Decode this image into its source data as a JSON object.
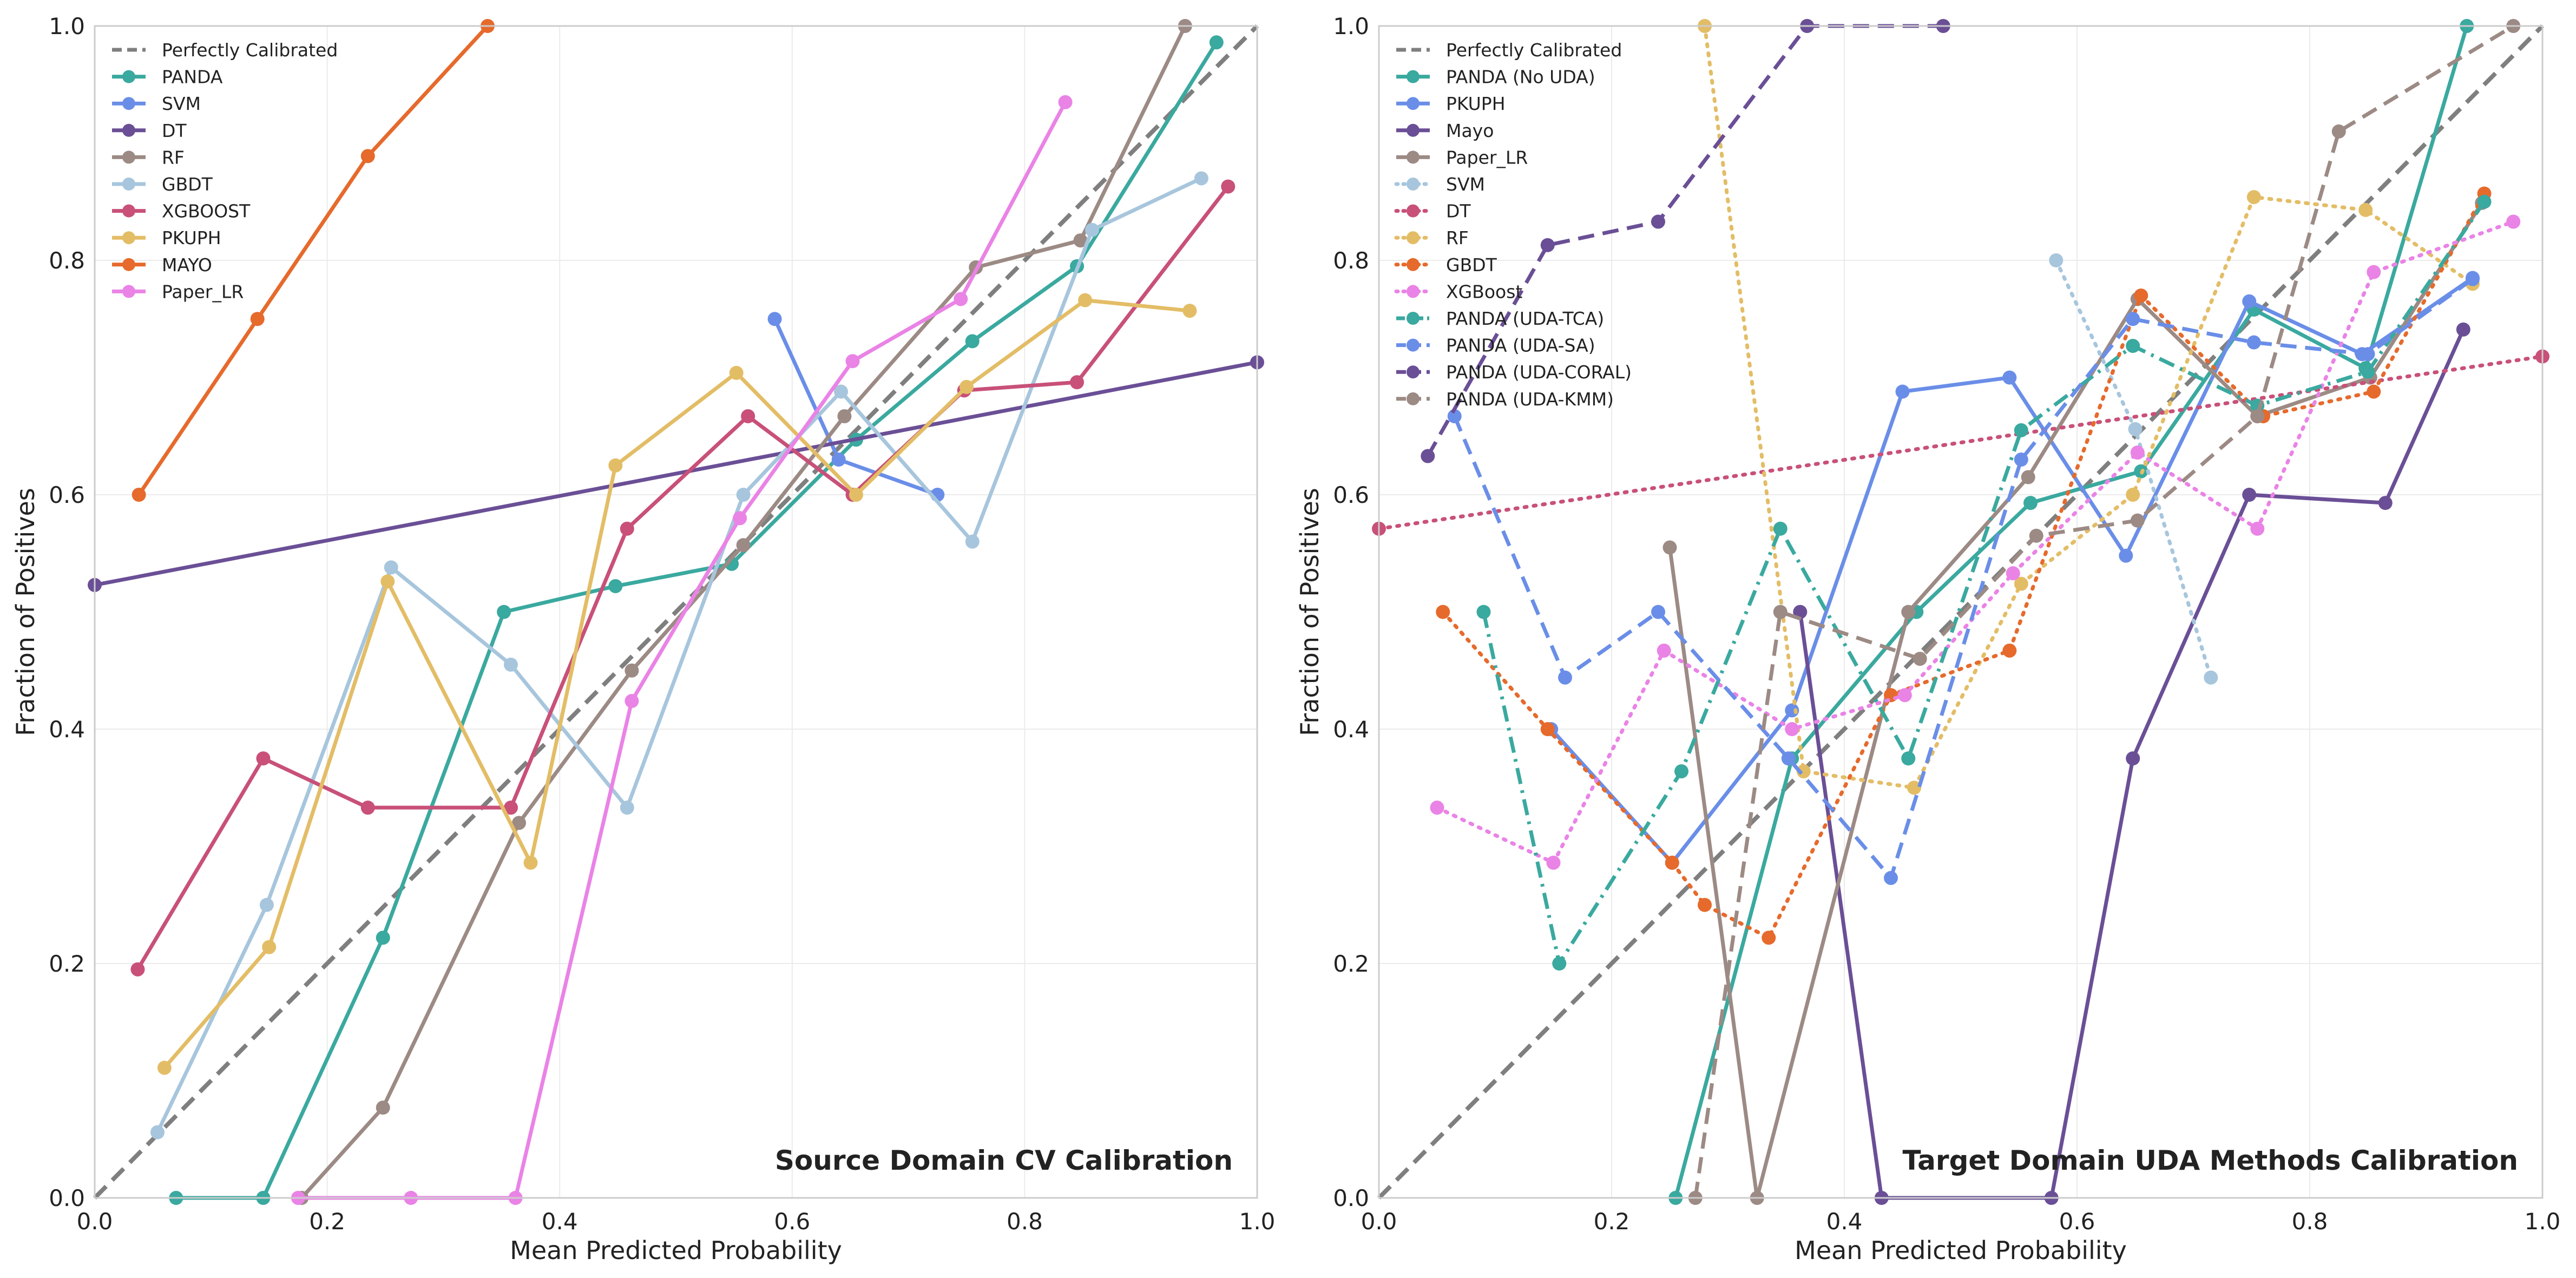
{
  "colors": {
    "diagonal": "#7f7f7f",
    "PANDA": "#3aa99f",
    "SVM": "#6a8ee8",
    "DT": "#6a4f96",
    "RF": "#9c8a84",
    "GBDT": "#a7c6dd",
    "XGBOOST": "#c85079",
    "PKUPH": "#e3bd66",
    "MAYO": "#e66a2c",
    "Paper_LR": "#ea83e6",
    "grid": "#ebebeb",
    "axes": "#cccccc",
    "text": "#222222"
  },
  "chart_data": [
    {
      "type": "line",
      "title": "Source Domain CV Calibration",
      "xlabel": "Mean Predicted Probability",
      "ylabel": "Fraction of Positives",
      "xlim": [
        0,
        1
      ],
      "ylim": [
        0,
        1
      ],
      "xticks": [
        "0.0",
        "0.2",
        "0.4",
        "0.6",
        "0.8",
        "1.0"
      ],
      "yticks": [
        "0.0",
        "0.2",
        "0.4",
        "0.6",
        "0.8",
        "1.0"
      ],
      "grid": true,
      "legend": "top-left",
      "title_position": "bottom-right",
      "series": [
        {
          "name": "Perfectly Calibrated",
          "color": "#7f7f7f",
          "dash": "dashed",
          "markers": false,
          "points": [
            [
              0,
              0
            ],
            [
              1,
              1
            ]
          ]
        },
        {
          "name": "PANDA",
          "color": "#3aa99f",
          "dash": "solid",
          "markers": true,
          "points": [
            [
              0.07,
              0.0
            ],
            [
              0.145,
              0.0
            ],
            [
              0.248,
              0.222
            ],
            [
              0.352,
              0.5
            ],
            [
              0.448,
              0.522
            ],
            [
              0.548,
              0.541
            ],
            [
              0.655,
              0.647
            ],
            [
              0.755,
              0.731
            ],
            [
              0.845,
              0.795
            ],
            [
              0.965,
              0.986
            ]
          ]
        },
        {
          "name": "SVM",
          "color": "#6a8ee8",
          "dash": "solid",
          "markers": true,
          "points": [
            [
              0.585,
              0.75
            ],
            [
              0.64,
              0.63
            ],
            [
              0.725,
              0.6
            ]
          ]
        },
        {
          "name": "DT",
          "color": "#6a4f96",
          "dash": "solid",
          "markers": true,
          "points": [
            [
              0.0,
              0.523
            ],
            [
              1.0,
              0.713
            ]
          ]
        },
        {
          "name": "RF",
          "color": "#9c8a84",
          "dash": "solid",
          "markers": true,
          "points": [
            [
              0.178,
              0.0
            ],
            [
              0.248,
              0.077
            ],
            [
              0.365,
              0.32
            ],
            [
              0.462,
              0.45
            ],
            [
              0.558,
              0.557
            ],
            [
              0.645,
              0.667
            ],
            [
              0.758,
              0.794
            ],
            [
              0.848,
              0.817
            ],
            [
              0.938,
              1.0
            ]
          ]
        },
        {
          "name": "GBDT",
          "color": "#a7c6dd",
          "dash": "solid",
          "markers": true,
          "points": [
            [
              0.054,
              0.056
            ],
            [
              0.148,
              0.25
            ],
            [
              0.255,
              0.538
            ],
            [
              0.358,
              0.455
            ],
            [
              0.458,
              0.333
            ],
            [
              0.558,
              0.6
            ],
            [
              0.642,
              0.688
            ],
            [
              0.755,
              0.56
            ],
            [
              0.858,
              0.826
            ],
            [
              0.952,
              0.87
            ]
          ]
        },
        {
          "name": "XGBOOST",
          "color": "#c85079",
          "dash": "solid",
          "markers": true,
          "points": [
            [
              0.037,
              0.195
            ],
            [
              0.145,
              0.375
            ],
            [
              0.235,
              0.333
            ],
            [
              0.358,
              0.333
            ],
            [
              0.458,
              0.571
            ],
            [
              0.562,
              0.667
            ],
            [
              0.652,
              0.6
            ],
            [
              0.748,
              0.689
            ],
            [
              0.845,
              0.696
            ],
            [
              0.975,
              0.863
            ]
          ]
        },
        {
          "name": "PKUPH",
          "color": "#e3bd66",
          "dash": "solid",
          "markers": true,
          "points": [
            [
              0.06,
              0.111
            ],
            [
              0.15,
              0.214
            ],
            [
              0.252,
              0.526
            ],
            [
              0.375,
              0.286
            ],
            [
              0.448,
              0.625
            ],
            [
              0.552,
              0.704
            ],
            [
              0.655,
              0.6
            ],
            [
              0.75,
              0.692
            ],
            [
              0.852,
              0.766
            ],
            [
              0.942,
              0.757
            ]
          ]
        },
        {
          "name": "MAYO",
          "color": "#e66a2c",
          "dash": "solid",
          "markers": true,
          "points": [
            [
              0.038,
              0.6
            ],
            [
              0.14,
              0.75
            ],
            [
              0.235,
              0.889
            ],
            [
              0.338,
              1.0
            ]
          ]
        },
        {
          "name": "Paper_LR",
          "color": "#ea83e6",
          "dash": "solid",
          "markers": true,
          "points": [
            [
              0.175,
              0.0
            ],
            [
              0.272,
              0.0
            ],
            [
              0.362,
              0.0
            ],
            [
              0.462,
              0.424
            ],
            [
              0.555,
              0.58
            ],
            [
              0.652,
              0.714
            ],
            [
              0.745,
              0.767
            ],
            [
              0.835,
              0.935
            ]
          ]
        }
      ]
    },
    {
      "type": "line",
      "title": "Target Domain UDA Methods Calibration",
      "xlabel": "Mean Predicted Probability",
      "ylabel": "Fraction of Positives",
      "xlim": [
        0,
        1
      ],
      "ylim": [
        0,
        1
      ],
      "xticks": [
        "0.0",
        "0.2",
        "0.4",
        "0.6",
        "0.8",
        "1.0"
      ],
      "yticks": [
        "0.0",
        "0.2",
        "0.4",
        "0.6",
        "0.8",
        "1.0"
      ],
      "grid": true,
      "legend": "top-left",
      "title_position": "bottom-right",
      "series": [
        {
          "name": "Perfectly Calibrated",
          "color": "#7f7f7f",
          "dash": "dashed",
          "markers": false,
          "points": [
            [
              0,
              0
            ],
            [
              1,
              1
            ]
          ]
        },
        {
          "name": "PANDA (No UDA)",
          "color": "#3aa99f",
          "dash": "solid",
          "markers": true,
          "points": [
            [
              0.255,
              0.0
            ],
            [
              0.355,
              0.375
            ],
            [
              0.462,
              0.5
            ],
            [
              0.56,
              0.593
            ],
            [
              0.655,
              0.62
            ],
            [
              0.752,
              0.758
            ],
            [
              0.848,
              0.708
            ],
            [
              0.935,
              1.0
            ]
          ]
        },
        {
          "name": "PKUPH",
          "color": "#6a8ee8",
          "dash": "solid",
          "markers": true,
          "points": [
            [
              0.148,
              0.4
            ],
            [
              0.252,
              0.286
            ],
            [
              0.355,
              0.416
            ],
            [
              0.45,
              0.688
            ],
            [
              0.542,
              0.7
            ],
            [
              0.642,
              0.548
            ],
            [
              0.748,
              0.765
            ],
            [
              0.845,
              0.72
            ],
            [
              0.94,
              0.785
            ]
          ]
        },
        {
          "name": "Mayo",
          "color": "#6a4f96",
          "dash": "solid",
          "markers": true,
          "points": [
            [
              0.362,
              0.5
            ],
            [
              0.432,
              0.0
            ],
            [
              0.578,
              0.0
            ],
            [
              0.648,
              0.375
            ],
            [
              0.748,
              0.6
            ],
            [
              0.865,
              0.593
            ],
            [
              0.932,
              0.741
            ]
          ]
        },
        {
          "name": "Paper_LR",
          "color": "#9c8a84",
          "dash": "solid",
          "markers": true,
          "points": [
            [
              0.25,
              0.555
            ],
            [
              0.325,
              0.0
            ],
            [
              0.455,
              0.5
            ],
            [
              0.558,
              0.615
            ],
            [
              0.652,
              0.767
            ],
            [
              0.755,
              0.667
            ],
            [
              0.852,
              0.7
            ],
            [
              0.948,
              0.849
            ]
          ]
        },
        {
          "name": "SVM",
          "color": "#a7c6dd",
          "dash": "dotted",
          "markers": true,
          "points": [
            [
              0.582,
              0.8
            ],
            [
              0.65,
              0.656
            ],
            [
              0.715,
              0.444
            ]
          ]
        },
        {
          "name": "DT",
          "color": "#c85079",
          "dash": "dotted",
          "markers": true,
          "points": [
            [
              0.0,
              0.571
            ],
            [
              1.0,
              0.718
            ]
          ]
        },
        {
          "name": "RF",
          "color": "#e3bd66",
          "dash": "dotted",
          "markers": true,
          "points": [
            [
              0.28,
              1.0
            ],
            [
              0.365,
              0.364
            ],
            [
              0.46,
              0.35
            ],
            [
              0.552,
              0.524
            ],
            [
              0.648,
              0.6
            ],
            [
              0.752,
              0.854
            ],
            [
              0.848,
              0.843
            ],
            [
              0.94,
              0.78
            ]
          ]
        },
        {
          "name": "GBDT",
          "color": "#e66a2c",
          "dash": "dotted",
          "markers": true,
          "points": [
            [
              0.055,
              0.5
            ],
            [
              0.145,
              0.4
            ],
            [
              0.252,
              0.286
            ],
            [
              0.28,
              0.25
            ],
            [
              0.335,
              0.222
            ],
            [
              0.44,
              0.429
            ],
            [
              0.542,
              0.467
            ],
            [
              0.655,
              0.77
            ],
            [
              0.76,
              0.667
            ],
            [
              0.855,
              0.688
            ],
            [
              0.95,
              0.857
            ]
          ]
        },
        {
          "name": "XGBoost",
          "color": "#ea83e6",
          "dash": "dotted",
          "markers": true,
          "points": [
            [
              0.05,
              0.333
            ],
            [
              0.15,
              0.286
            ],
            [
              0.245,
              0.467
            ],
            [
              0.355,
              0.4
            ],
            [
              0.452,
              0.429
            ],
            [
              0.545,
              0.533
            ],
            [
              0.652,
              0.636
            ],
            [
              0.755,
              0.571
            ],
            [
              0.855,
              0.79
            ],
            [
              0.975,
              0.833
            ]
          ]
        },
        {
          "name": "PANDA (UDA-TCA)",
          "color": "#3aa99f",
          "dash": "dashdot",
          "markers": true,
          "points": [
            [
              0.09,
              0.5
            ],
            [
              0.155,
              0.2
            ],
            [
              0.26,
              0.364
            ],
            [
              0.345,
              0.571
            ],
            [
              0.455,
              0.375
            ],
            [
              0.552,
              0.655
            ],
            [
              0.648,
              0.727
            ],
            [
              0.755,
              0.676
            ],
            [
              0.85,
              0.705
            ],
            [
              0.95,
              0.85
            ]
          ]
        },
        {
          "name": "PANDA (UDA-SA)",
          "color": "#6a8ee8",
          "dash": "dashed",
          "markers": true,
          "points": [
            [
              0.065,
              0.667
            ],
            [
              0.16,
              0.444
            ],
            [
              0.24,
              0.5
            ],
            [
              0.352,
              0.375
            ],
            [
              0.44,
              0.273
            ],
            [
              0.552,
              0.63
            ],
            [
              0.648,
              0.75
            ],
            [
              0.752,
              0.73
            ],
            [
              0.85,
              0.72
            ],
            [
              0.94,
              0.784
            ]
          ]
        },
        {
          "name": "PANDA (UDA-CORAL)",
          "color": "#6a4f96",
          "dash": "dashed",
          "markers": true,
          "points": [
            [
              0.042,
              0.633
            ],
            [
              0.145,
              0.813
            ],
            [
              0.24,
              0.833
            ],
            [
              0.368,
              1.0
            ],
            [
              0.485,
              1.0
            ]
          ]
        },
        {
          "name": "PANDA (UDA-KMM)",
          "color": "#9c8a84",
          "dash": "dashed",
          "markers": true,
          "points": [
            [
              0.272,
              0.0
            ],
            [
              0.345,
              0.5
            ],
            [
              0.465,
              0.46
            ],
            [
              0.565,
              0.565
            ],
            [
              0.652,
              0.578
            ],
            [
              0.755,
              0.667
            ],
            [
              0.825,
              0.91
            ],
            [
              0.975,
              1.0
            ]
          ]
        }
      ]
    }
  ]
}
